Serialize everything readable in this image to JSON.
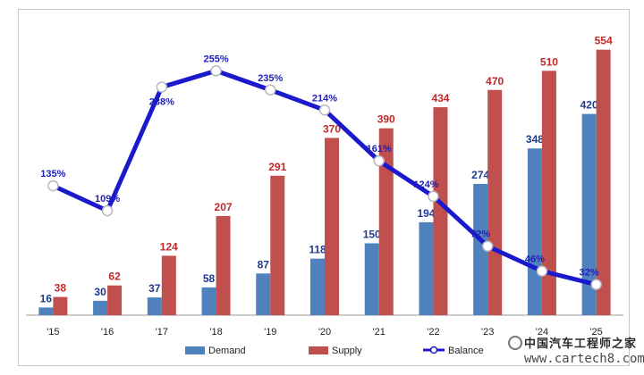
{
  "chart_data": {
    "type": "bar",
    "categories": [
      "'15",
      "'16",
      "'17",
      "'18",
      "'19",
      "'20",
      "'21",
      "'22",
      "'23",
      "'24",
      "'25"
    ],
    "series": [
      {
        "name": "Demand",
        "type": "bar",
        "color": "#4f81bd",
        "label_color": "#1f3a8a",
        "values": [
          16,
          30,
          37,
          58,
          87,
          118,
          150,
          194,
          274,
          348,
          420
        ]
      },
      {
        "name": "Supply",
        "type": "bar",
        "color": "#c0504d",
        "label_color": "#c0282a",
        "values": [
          38,
          62,
          124,
          207,
          291,
          370,
          390,
          434,
          470,
          510,
          554
        ]
      },
      {
        "name": "Balance",
        "type": "line",
        "color": "#1a1acc",
        "values": [
          135,
          109,
          238,
          255,
          235,
          214,
          161,
          124,
          72,
          46,
          32
        ],
        "labels": [
          "135%",
          "109%",
          "238%",
          "255%",
          "235%",
          "214%",
          "161%",
          "124%",
          "72%",
          "46%",
          "32%"
        ]
      }
    ],
    "ylim": [
      0,
      600
    ],
    "balance_ylim": [
      0,
      300
    ],
    "grid": false,
    "legend_position": "bottom"
  },
  "watermark": {
    "line1": "中国汽车工程师之家",
    "line2": "www.cartech8.com"
  },
  "colors": {
    "demand": "#4f81bd",
    "supply": "#c0504d",
    "balance": "#1a1acc"
  }
}
